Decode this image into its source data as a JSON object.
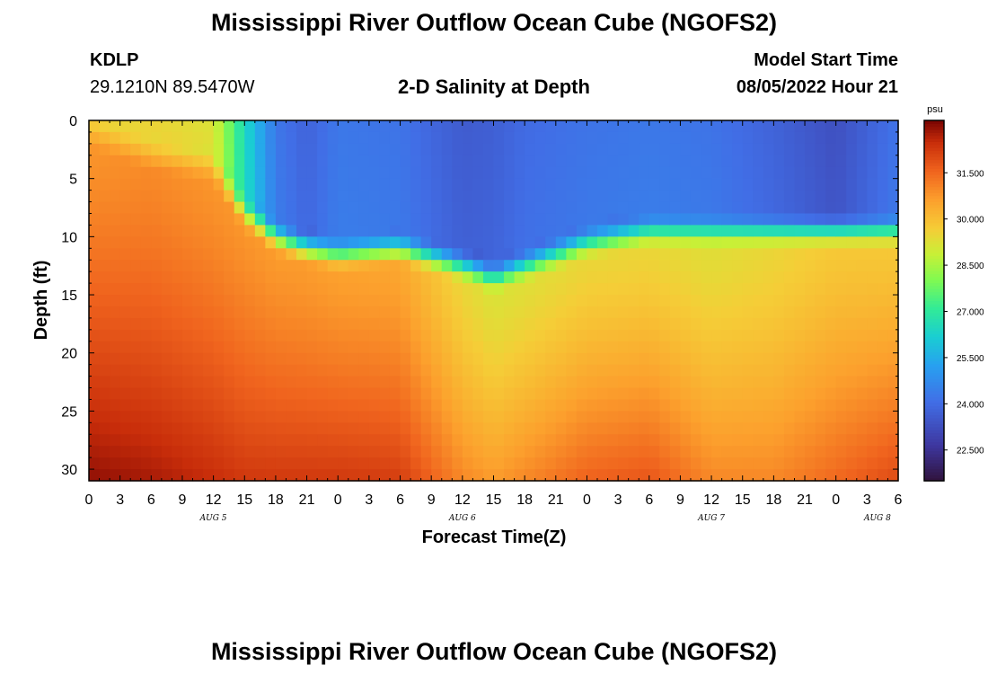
{
  "page": {
    "title": "Mississippi River Outflow Ocean Cube (NGOFS2)",
    "title_repeat": "Mississippi River Outflow Ocean Cube (NGOFS2)",
    "station": "KDLP",
    "coords": "29.1210N  89.5470W",
    "subtitle": "2-D Salinity at Depth",
    "model_label": "Model Start Time",
    "model_time": "08/05/2022 Hour 21"
  },
  "chart_data": {
    "type": "heatmap",
    "title": "2-D Salinity at Depth",
    "xlabel": "Forecast Time(Z)",
    "ylabel": "Depth (ft)",
    "xlim": [
      0,
      78
    ],
    "ylim": [
      0,
      31
    ],
    "y_reversed": true,
    "xtick_labels": [
      "0",
      "3",
      "6",
      "9",
      "12",
      "15",
      "18",
      "21",
      "0",
      "3",
      "6",
      "9",
      "12",
      "15",
      "18",
      "21",
      "0",
      "3",
      "6",
      "9",
      "12",
      "15",
      "18",
      "21",
      "0",
      "3",
      "6"
    ],
    "date_labels": [
      {
        "label": "AUG 5",
        "hour": 12
      },
      {
        "label": "AUG 6",
        "hour": 36
      },
      {
        "label": "AUG 7",
        "hour": 60
      },
      {
        "label": "AUG 8",
        "hour": 76
      }
    ],
    "ytick_labels": [
      "0",
      "5",
      "10",
      "15",
      "20",
      "25",
      "30"
    ],
    "yticks": [
      0,
      5,
      10,
      15,
      20,
      25,
      30
    ],
    "colorbar": {
      "unit": "psu",
      "min": 21.5,
      "max": 33.2,
      "ticks": [
        22.5,
        24.0,
        25.5,
        27.0,
        28.5,
        30.0,
        31.5
      ],
      "tick_labels": [
        "22.500",
        "24.000",
        "25.500",
        "27.000",
        "28.500",
        "30.000",
        "31.500"
      ]
    },
    "field_keyframes": {
      "hour": [
        0,
        6,
        12,
        15,
        18,
        21,
        24,
        30,
        36,
        39,
        42,
        48,
        54,
        60,
        66,
        72,
        78
      ],
      "surface": [
        29.5,
        29.5,
        29.2,
        26.5,
        24.3,
        23.8,
        24.3,
        24.2,
        23.6,
        23.7,
        24.0,
        24.2,
        24.3,
        24.2,
        23.8,
        23.3,
        24.2
      ],
      "halocline_depth_ft": [
        1,
        3,
        4,
        8,
        10,
        11,
        11.5,
        11,
        12.5,
        13.5,
        12.5,
        10.5,
        9.5,
        9.5,
        9.5,
        9.5,
        9.5
      ],
      "mid_salinity": [
        30.8,
        31.0,
        30.8,
        30.8,
        30.7,
        30.7,
        30.6,
        30.5,
        29.5,
        29.2,
        29.3,
        29.5,
        29.5,
        29.3,
        29.5,
        29.8,
        29.8
      ],
      "bottom_salinity": [
        33.0,
        32.8,
        32.5,
        32.3,
        32.3,
        32.3,
        32.3,
        32.2,
        31.0,
        30.7,
        31.0,
        31.6,
        31.8,
        31.0,
        31.0,
        31.5,
        32.0
      ]
    }
  }
}
